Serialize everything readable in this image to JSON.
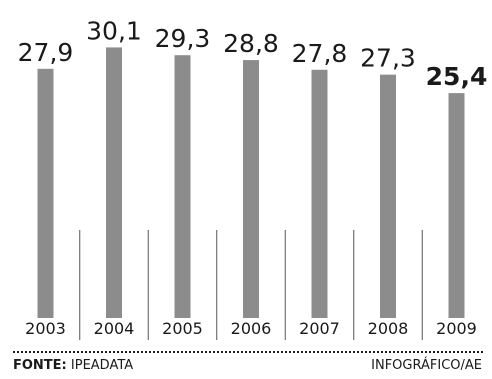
{
  "chart_data": {
    "type": "bar",
    "categories": [
      "2003",
      "2004",
      "2005",
      "2006",
      "2007",
      "2008",
      "2009"
    ],
    "values": [
      27.9,
      30.1,
      29.3,
      28.8,
      27.8,
      27.3,
      25.4
    ],
    "value_labels": [
      "27,9",
      "30,1",
      "29,3",
      "28,8",
      "27,8",
      "27,3",
      "25,4"
    ],
    "highlight_index": 6,
    "title": "",
    "xlabel": "",
    "ylabel": "",
    "grid": false,
    "bar_color": "#8c8c8c"
  },
  "footer": {
    "source_label": "FONTE:",
    "source_value": " IPEADATA",
    "credit": "INFOGRÁFICO/AE"
  }
}
